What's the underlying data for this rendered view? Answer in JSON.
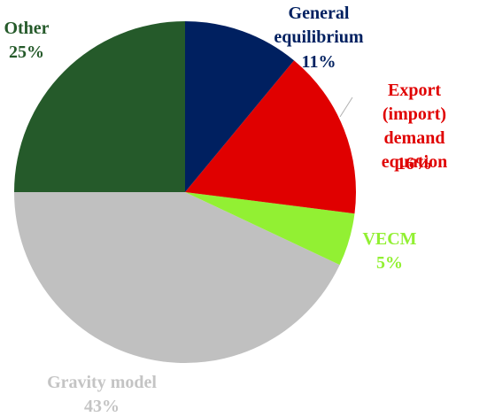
{
  "chart_data": {
    "type": "pie",
    "categories": [
      "General\nequilibrium",
      "Export (import)\ndemand\nequation",
      "VECM",
      "Gravity model",
      "Other"
    ],
    "values": [
      11,
      16,
      5,
      43,
      25
    ],
    "value_labels": [
      "11%",
      "16%",
      "5%",
      "43%",
      "25%"
    ],
    "colors": [
      "#002060",
      "#e00000",
      "#92f033",
      "#c0c0c0",
      "#255a2a"
    ],
    "label_colors": [
      "#002060",
      "#e00000",
      "#92f033",
      "#c4c4c4",
      "#255a2a"
    ]
  }
}
